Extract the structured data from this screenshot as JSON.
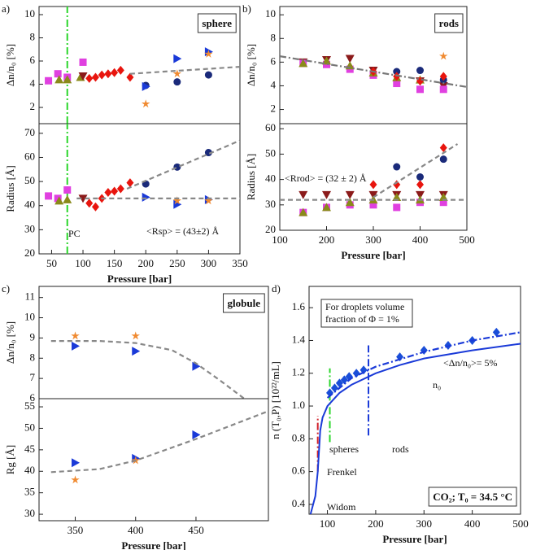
{
  "chart_data": [
    {
      "type": "scatter",
      "panel_label": "a)",
      "box_label": "sphere",
      "ylabel": "Δn/n₀ [%]",
      "xlim": [
        30,
        350
      ],
      "ylim": [
        0.6,
        10.7
      ],
      "yticks": [
        2,
        4,
        6,
        8,
        10
      ],
      "vlines": [
        {
          "x": 75,
          "color": "#2bd62b"
        }
      ],
      "series": [
        {
          "marker": "square",
          "color": "#e040e0",
          "x": [
            45,
            60,
            75,
            100
          ],
          "values": [
            4.3,
            4.9,
            4.6,
            5.9
          ]
        },
        {
          "marker": "triangle-up",
          "color": "#8a8a1a",
          "x": [
            62,
            75,
            96
          ],
          "values": [
            4.4,
            4.4,
            4.6
          ]
        },
        {
          "marker": "triangle-down",
          "color": "#8b1a1a",
          "x": [
            100
          ],
          "values": [
            4.7
          ]
        },
        {
          "marker": "diamond",
          "color": "#e8150e",
          "x": [
            110,
            120,
            130,
            140,
            150,
            160,
            175
          ],
          "values": [
            4.5,
            4.6,
            4.8,
            4.9,
            5.0,
            5.2,
            4.6
          ]
        },
        {
          "marker": "circle",
          "color": "#1a2a7a",
          "x": [
            200,
            250,
            300
          ],
          "values": [
            3.9,
            4.2,
            4.8
          ]
        },
        {
          "marker": "triangle-right",
          "color": "#1a3ad8",
          "x": [
            200,
            250,
            300
          ],
          "values": [
            3.8,
            6.2,
            6.8
          ]
        },
        {
          "marker": "star",
          "color": "#f08a30",
          "x": [
            200,
            250,
            300
          ],
          "values": [
            2.3,
            4.9,
            6.6
          ]
        },
        {
          "line": "dashed",
          "color": "#888",
          "x": [
            175,
            350
          ],
          "values": [
            4.9,
            5.5
          ]
        }
      ]
    },
    {
      "type": "scatter",
      "ylabel": "Radius [Å]",
      "xlabel": "Pressure [bar]",
      "xlim": [
        30,
        350
      ],
      "ylim": [
        20,
        74
      ],
      "yticks": [
        20,
        30,
        40,
        50,
        60,
        70
      ],
      "xticks": [
        50,
        100,
        150,
        200,
        250,
        300,
        350
      ],
      "vlines": [
        {
          "x": 75,
          "color": "#2bd62b"
        }
      ],
      "annotations": [
        "PC",
        "<Rsp> = (43±2) Å"
      ],
      "series": [
        {
          "marker": "square",
          "color": "#e040e0",
          "x": [
            45,
            60,
            75
          ],
          "values": [
            44,
            43,
            46.5
          ]
        },
        {
          "marker": "triangle-up",
          "color": "#8a8a1a",
          "x": [
            62,
            75
          ],
          "values": [
            42,
            42.5
          ]
        },
        {
          "marker": "triangle-down",
          "color": "#8b1a1a",
          "x": [
            100
          ],
          "values": [
            43
          ]
        },
        {
          "marker": "diamond",
          "color": "#e8150e",
          "x": [
            110,
            120,
            130,
            140,
            150,
            160,
            175
          ],
          "values": [
            41,
            39.5,
            43,
            45.5,
            46,
            47,
            49.5
          ]
        },
        {
          "marker": "circle",
          "color": "#1a2a7a",
          "x": [
            200,
            250,
            300
          ],
          "values": [
            49,
            56,
            62
          ]
        },
        {
          "marker": "triangle-right",
          "color": "#1a3ad8",
          "x": [
            200,
            250,
            300
          ],
          "values": [
            43.5,
            40.5,
            42.5
          ]
        },
        {
          "marker": "star",
          "color": "#f08a30",
          "x": [
            250,
            300
          ],
          "values": [
            42,
            42
          ]
        },
        {
          "line": "dashed",
          "color": "#888",
          "x": [
            170,
            350
          ],
          "values": [
            47,
            67
          ]
        },
        {
          "line": "dashed",
          "color": "#888",
          "x": [
            90,
            350
          ],
          "values": [
            43,
            43
          ]
        }
      ]
    },
    {
      "type": "scatter",
      "panel_label": "b)",
      "box_label": "rods",
      "ylabel": "Δn/n₀ [%]",
      "xlim": [
        100,
        500
      ],
      "ylim": [
        0.8,
        10.7
      ],
      "yticks": [
        2,
        4,
        6,
        8,
        10
      ],
      "series": [
        {
          "marker": "triangle-down",
          "color": "#8b1a1a",
          "x": [
            150,
            200,
            250,
            300,
            400,
            450
          ],
          "values": [
            6.0,
            6.2,
            6.3,
            5.3,
            4.4,
            4.0
          ]
        },
        {
          "marker": "square",
          "color": "#e040e0",
          "x": [
            150,
            200,
            250,
            300,
            350,
            400,
            450
          ],
          "values": [
            5.9,
            5.8,
            5.4,
            4.9,
            4.2,
            3.7,
            3.7
          ]
        },
        {
          "marker": "triangle-up",
          "color": "#8a8a1a",
          "x": [
            150,
            200,
            250,
            300,
            350,
            400
          ],
          "values": [
            5.9,
            6.1,
            5.7,
            5.1,
            4.7,
            4.5
          ]
        },
        {
          "marker": "circle",
          "color": "#1a2a7a",
          "x": [
            350,
            400,
            450
          ],
          "values": [
            5.2,
            5.3,
            4.5
          ]
        },
        {
          "marker": "diamond",
          "color": "#e8150e",
          "x": [
            300,
            350,
            400,
            450
          ],
          "values": [
            5.2,
            4.8,
            4.4,
            4.8
          ]
        },
        {
          "marker": "star",
          "color": "#f08a30",
          "x": [
            450
          ],
          "values": [
            6.5
          ]
        },
        {
          "line": "dashdot",
          "color": "#777",
          "x": [
            100,
            500
          ],
          "values": [
            6.5,
            3.9
          ]
        }
      ]
    },
    {
      "type": "scatter",
      "ylabel": "Radius [Å]",
      "xlabel": "Pressure [bar]",
      "xlim": [
        100,
        500
      ],
      "ylim": [
        20,
        62
      ],
      "yticks": [
        20,
        30,
        40,
        50,
        60
      ],
      "xticks": [
        100,
        200,
        300,
        400,
        500
      ],
      "annotations": [
        "<Rrod> = (32 ± 2) Å"
      ],
      "series": [
        {
          "marker": "triangle-down",
          "color": "#8b1a1a",
          "x": [
            150,
            200,
            250,
            300,
            350,
            400,
            450
          ],
          "values": [
            34,
            34,
            34,
            34,
            34,
            34,
            34
          ]
        },
        {
          "marker": "square",
          "color": "#e040e0",
          "x": [
            150,
            200,
            250,
            300,
            350,
            400,
            450
          ],
          "values": [
            27,
            29,
            30,
            30,
            29,
            31,
            31
          ]
        },
        {
          "marker": "triangle-up",
          "color": "#8a8a1a",
          "x": [
            150,
            200,
            250,
            300,
            350,
            400,
            450
          ],
          "values": [
            27,
            29,
            31,
            32,
            33,
            32,
            33
          ]
        },
        {
          "marker": "circle",
          "color": "#1a2a7a",
          "x": [
            350,
            400,
            450
          ],
          "values": [
            45,
            41,
            48
          ]
        },
        {
          "marker": "diamond",
          "color": "#e8150e",
          "x": [
            300,
            350,
            400,
            450
          ],
          "values": [
            38,
            38,
            38,
            52.5
          ]
        },
        {
          "line": "dashed",
          "color": "#888",
          "x": [
            100,
            500
          ],
          "values": [
            32,
            32
          ]
        },
        {
          "line": "dashed",
          "color": "#888",
          "x": [
            300,
            480
          ],
          "values": [
            33,
            54
          ]
        }
      ]
    },
    {
      "type": "scatter",
      "panel_label": "c)",
      "box_label": "globule",
      "ylabel": "Δn/n₀ [%]",
      "xlim": [
        320,
        510
      ],
      "ylim": [
        6,
        11.55
      ],
      "yticks": [
        6,
        7,
        8,
        9,
        10,
        11
      ],
      "series": [
        {
          "marker": "star",
          "color": "#f08a30",
          "x": [
            350,
            400
          ],
          "values": [
            9.1,
            9.1
          ]
        },
        {
          "marker": "triangle-right",
          "color": "#1a3ad8",
          "x": [
            350,
            400,
            450
          ],
          "values": [
            8.6,
            8.35,
            7.6
          ]
        },
        {
          "line": "dashed",
          "color": "#888",
          "x": [
            330,
            370,
            400,
            430,
            450,
            470,
            490
          ],
          "values": [
            8.85,
            8.85,
            8.75,
            8.4,
            7.75,
            6.9,
            6.0
          ]
        }
      ]
    },
    {
      "type": "scatter",
      "ylabel": "Rg [Å]",
      "xlabel": "Pressure [bar]",
      "xlim": [
        320,
        510
      ],
      "ylim": [
        28.5,
        56.9
      ],
      "yticks": [
        30,
        35,
        40,
        45,
        50,
        55
      ],
      "xticks": [
        350,
        400,
        450
      ],
      "series": [
        {
          "marker": "triangle-right",
          "color": "#1a3ad8",
          "x": [
            350,
            400,
            450
          ],
          "values": [
            42,
            43,
            48.5
          ]
        },
        {
          "marker": "star",
          "color": "#f08a30",
          "x": [
            350,
            400
          ],
          "values": [
            38,
            42.5
          ]
        },
        {
          "line": "dashed",
          "color": "#888",
          "x": [
            330,
            370,
            400,
            450,
            510
          ],
          "values": [
            39.8,
            40.5,
            42.5,
            47.5,
            54
          ]
        }
      ]
    },
    {
      "type": "scatter",
      "panel_label": "d)",
      "box_label": "CO₂; T₀ = 34.5 °C",
      "ylabel": "n (T₀,P) [10²²/mL]",
      "xlabel": "Pressure [bar]",
      "xlim": [
        62,
        500
      ],
      "ylim": [
        0.34,
        1.73
      ],
      "yticks": [
        0.4,
        0.6,
        0.8,
        {
          "value": 1,
          "label": "1.0"
        },
        1.2,
        1.4,
        1.6
      ],
      "xticks": [
        100,
        200,
        300,
        400,
        500
      ],
      "annotations": [
        "For droplets volume",
        "fraction of Φ = 1%",
        "<Δn/n₀>= 5%",
        "n₀",
        "spheres",
        "rods",
        "Frenkel",
        "Widom"
      ],
      "vlines": [
        {
          "x": 80,
          "y": [
            0.6,
            0.94
          ],
          "color": "#d0202a"
        },
        {
          "x": 105,
          "y": [
            0.78,
            1.23
          ],
          "color": "#2bd62b"
        },
        {
          "x": 185,
          "y": [
            0.82,
            1.37
          ],
          "color": "#1a3ad8"
        }
      ],
      "series": [
        {
          "marker": "diamond",
          "color": "#1a4ed8",
          "x": [
            105,
            115,
            125,
            135,
            145,
            160,
            175,
            250,
            300,
            350,
            400,
            450
          ],
          "values": [
            1.08,
            1.11,
            1.14,
            1.16,
            1.18,
            1.2,
            1.22,
            1.3,
            1.34,
            1.37,
            1.4,
            1.45
          ]
        },
        {
          "line": "solid",
          "color": "#1a3ad8",
          "x": [
            65,
            75,
            80,
            85,
            90,
            100,
            125,
            150,
            200,
            250,
            300,
            400,
            500
          ],
          "values": [
            0.34,
            0.45,
            0.6,
            0.85,
            0.93,
            1.0,
            1.08,
            1.13,
            1.2,
            1.25,
            1.29,
            1.34,
            1.38
          ]
        },
        {
          "line": "dashdot",
          "color": "#1a3ad8",
          "x": [
            100,
            150,
            200,
            300,
            400,
            500
          ],
          "values": [
            1.05,
            1.17,
            1.24,
            1.33,
            1.4,
            1.45
          ]
        }
      ]
    }
  ]
}
